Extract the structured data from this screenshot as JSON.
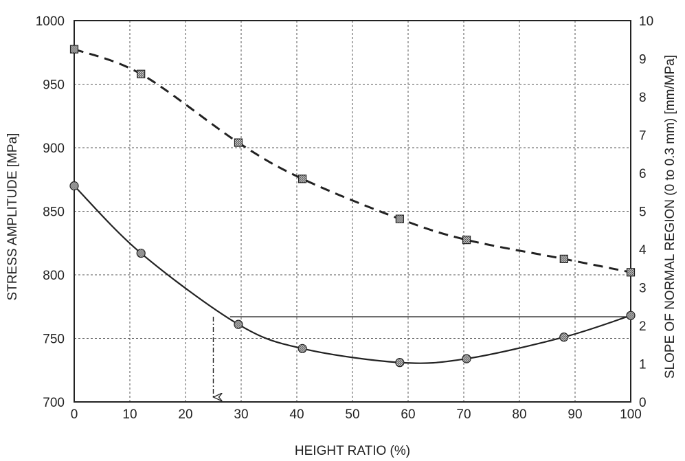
{
  "chart_data": {
    "type": "line",
    "title": "",
    "xlabel": "HEIGHT RATIO (%)",
    "ylabel_left": "STRESS AMPLITUDE [MPa]",
    "ylabel_right": "SLOPE OF NORMAL REGION (0 to 0.3 mm) [mm/MPa]",
    "xlim": [
      0,
      100
    ],
    "ylim_left": [
      700,
      1000
    ],
    "ylim_right": [
      0,
      10
    ],
    "grid": true,
    "x_ticks": [
      "0",
      "10",
      "20",
      "30",
      "40",
      "50",
      "60",
      "70",
      "80",
      "90",
      "100"
    ],
    "y_left_ticks": [
      "700",
      "750",
      "800",
      "850",
      "900",
      "950",
      "1000"
    ],
    "y_right_ticks": [
      "0",
      "1",
      "2",
      "3",
      "4",
      "5",
      "6",
      "7",
      "8",
      "9",
      "10"
    ],
    "series": [
      {
        "axis": "left",
        "style": "solid",
        "marker": "circle",
        "x": [
          0,
          12,
          29.5,
          41,
          58.5,
          70.5,
          88,
          100
        ],
        "y": [
          870,
          817,
          761,
          742,
          731,
          734,
          751,
          768
        ]
      },
      {
        "axis": "right",
        "style": "dashed",
        "marker": "square",
        "x": [
          0,
          12,
          29.5,
          41,
          58.5,
          70.5,
          88,
          100
        ],
        "y": [
          9.25,
          8.6,
          6.8,
          5.85,
          4.8,
          4.25,
          3.75,
          3.4
        ]
      }
    ],
    "annotations": {
      "reference_y_left": 767,
      "reference_x_start": 28,
      "arrow_x": 25,
      "arrow_from_y_left": 767,
      "arrow_to_y_left": 700
    }
  }
}
